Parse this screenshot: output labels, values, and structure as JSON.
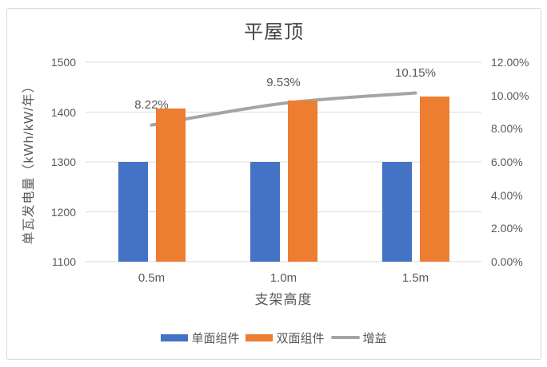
{
  "colors": {
    "bar_blue": "#4472C4",
    "bar_orange": "#ED7D31",
    "line_gray": "#A5A5A5",
    "grid": "#DBDBDB",
    "text": "#595959",
    "title_text": "#454545",
    "card_border": "#D9D9D9",
    "background": "#FFFFFF"
  },
  "chart_data": {
    "type": "bar",
    "subtype": "combo-bar-line",
    "title": "平屋顶",
    "categories": [
      "0.5m",
      "1.0m",
      "1.5m"
    ],
    "series": [
      {
        "id": "single-module",
        "name": "单面组件",
        "type": "bar",
        "axis": "left",
        "color": "#4472C4",
        "values": [
          1300,
          1300,
          1300
        ]
      },
      {
        "id": "double-module",
        "name": "双面组件",
        "type": "bar",
        "axis": "left",
        "color": "#ED7D31",
        "values": [
          1407,
          1424,
          1432
        ]
      },
      {
        "id": "gain",
        "name": "增益",
        "type": "line",
        "axis": "right",
        "color": "#A5A5A5",
        "values": [
          8.22,
          9.53,
          10.15
        ],
        "labels": [
          "8.22%",
          "9.53%",
          "10.15%"
        ]
      }
    ],
    "left_axis": {
      "title": "单瓦发电量（kWh/kW/年）",
      "min": 1100,
      "max": 1500,
      "ticks": [
        1500,
        1400,
        1300,
        1200,
        1100
      ],
      "tick_labels": [
        "1500",
        "1400",
        "1300",
        "1200",
        "1100"
      ]
    },
    "right_axis": {
      "min": 0,
      "max": 12,
      "ticks": [
        12,
        10,
        8,
        6,
        4,
        2,
        0
      ],
      "tick_labels": [
        "12.00%",
        "10.00%",
        "8.00%",
        "6.00%",
        "4.00%",
        "2.00%",
        "0.00%"
      ]
    },
    "x_axis": {
      "title": "支架高度"
    },
    "grid": true,
    "legend_position": "bottom",
    "legend": [
      "单面组件",
      "双面组件",
      "增益"
    ]
  }
}
